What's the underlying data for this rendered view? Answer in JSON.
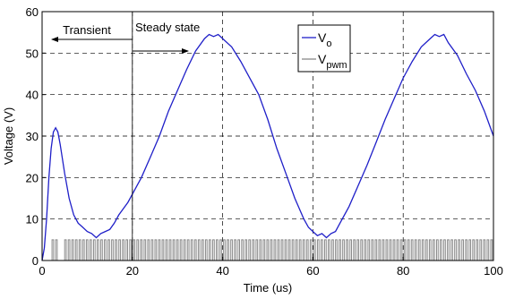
{
  "chart_data": {
    "type": "line",
    "title": "",
    "xlabel": "Time (us)",
    "ylabel": "Voltage (V)",
    "xlim": [
      0,
      100
    ],
    "ylim": [
      0,
      60
    ],
    "xticks": [
      0,
      20,
      40,
      60,
      80,
      100
    ],
    "yticks": [
      0,
      10,
      20,
      30,
      40,
      50,
      60
    ],
    "grid": "dashed",
    "legend": {
      "position": "top-right",
      "entries": [
        {
          "base": "V",
          "sub": "o",
          "color": "#1f1fc8"
        },
        {
          "base": "V",
          "sub": "pwm",
          "color": "#888888"
        }
      ]
    },
    "annotations": [
      {
        "text": "Transient",
        "arrow": "left"
      },
      {
        "text": "Steady state",
        "arrow": "right"
      }
    ],
    "region_divider_x": 20,
    "series": [
      {
        "name": "Vo",
        "color": "#1f1fc8",
        "x": [
          0,
          0.5,
          1,
          1.5,
          2,
          2.5,
          3,
          3.5,
          4,
          5,
          6,
          7,
          8,
          9,
          10,
          11,
          12,
          13,
          14,
          15,
          16,
          17,
          18,
          19,
          20,
          22,
          24,
          26,
          28,
          30,
          32,
          34,
          36,
          37,
          38,
          39,
          40,
          42,
          44,
          46,
          48,
          50,
          52,
          54,
          56,
          58,
          59,
          60,
          61,
          62,
          63,
          64,
          65,
          66,
          68,
          70,
          72,
          74,
          76,
          78,
          80,
          82,
          84,
          86,
          87,
          88,
          89,
          90,
          92,
          94,
          96,
          98,
          100
        ],
        "y": [
          0,
          3,
          10,
          20,
          27,
          31,
          32,
          31,
          28,
          21,
          15,
          11,
          9,
          8,
          7,
          6.5,
          5.5,
          6.5,
          7,
          7.5,
          9,
          11,
          12.5,
          14,
          16,
          20,
          25,
          30,
          36,
          41,
          46,
          50.5,
          53.5,
          54.5,
          54,
          54.5,
          53.5,
          51.5,
          48,
          44,
          40,
          34,
          27,
          21,
          15,
          10,
          8,
          7,
          6,
          6.5,
          5.5,
          6.5,
          7,
          9,
          13,
          18,
          23,
          28.5,
          34,
          39,
          44,
          48,
          51.5,
          53.5,
          54.5,
          54,
          54.5,
          52.5,
          49.5,
          45,
          41,
          36,
          30
        ]
      },
      {
        "name": "Vpwm",
        "color": "#888888",
        "type": "pulse",
        "level": 5,
        "pulse_starts": [
          2.2,
          3.0,
          5.0,
          5.8,
          6.6,
          7.4,
          8.2,
          9.0,
          9.8,
          10.6,
          11.4,
          12.2,
          13.0,
          13.8,
          14.6,
          15.4,
          16.2,
          17.0,
          17.8,
          18.6,
          19.4,
          20.2,
          21.0,
          21.8,
          22.6,
          23.4,
          24.2,
          25.0,
          25.8,
          26.6,
          27.4,
          28.2,
          29.0,
          29.8,
          30.6,
          31.4,
          32.2,
          33.0,
          33.8,
          34.6,
          35.4,
          36.2,
          37.0,
          37.8,
          38.6,
          39.4,
          40.2,
          41.0,
          41.8,
          42.6,
          43.4,
          44.2,
          45.0,
          45.8,
          46.6,
          47.4,
          48.2,
          49.0,
          49.8,
          50.6,
          51.4,
          52.2,
          53.0,
          53.8,
          54.6,
          55.4,
          56.2,
          57.0,
          57.8,
          58.6,
          59.4,
          60.2,
          61.0,
          61.8,
          62.6,
          63.4,
          64.2,
          65.0,
          65.8,
          66.6,
          67.4,
          68.2,
          69.0,
          69.8,
          70.6,
          71.4,
          72.2,
          73.0,
          73.8,
          74.6,
          75.4,
          76.2,
          77.0,
          77.8,
          78.6,
          79.4,
          80.2,
          81.0,
          81.8,
          82.6,
          83.4,
          84.2,
          85.0,
          85.8,
          86.6,
          87.4,
          88.2,
          89.0,
          89.8,
          90.6,
          91.4,
          92.2,
          93.0,
          93.8,
          94.6,
          95.4,
          96.2,
          97.0,
          97.8,
          98.6,
          99.4
        ],
        "pulse_width": 0.35
      }
    ]
  }
}
